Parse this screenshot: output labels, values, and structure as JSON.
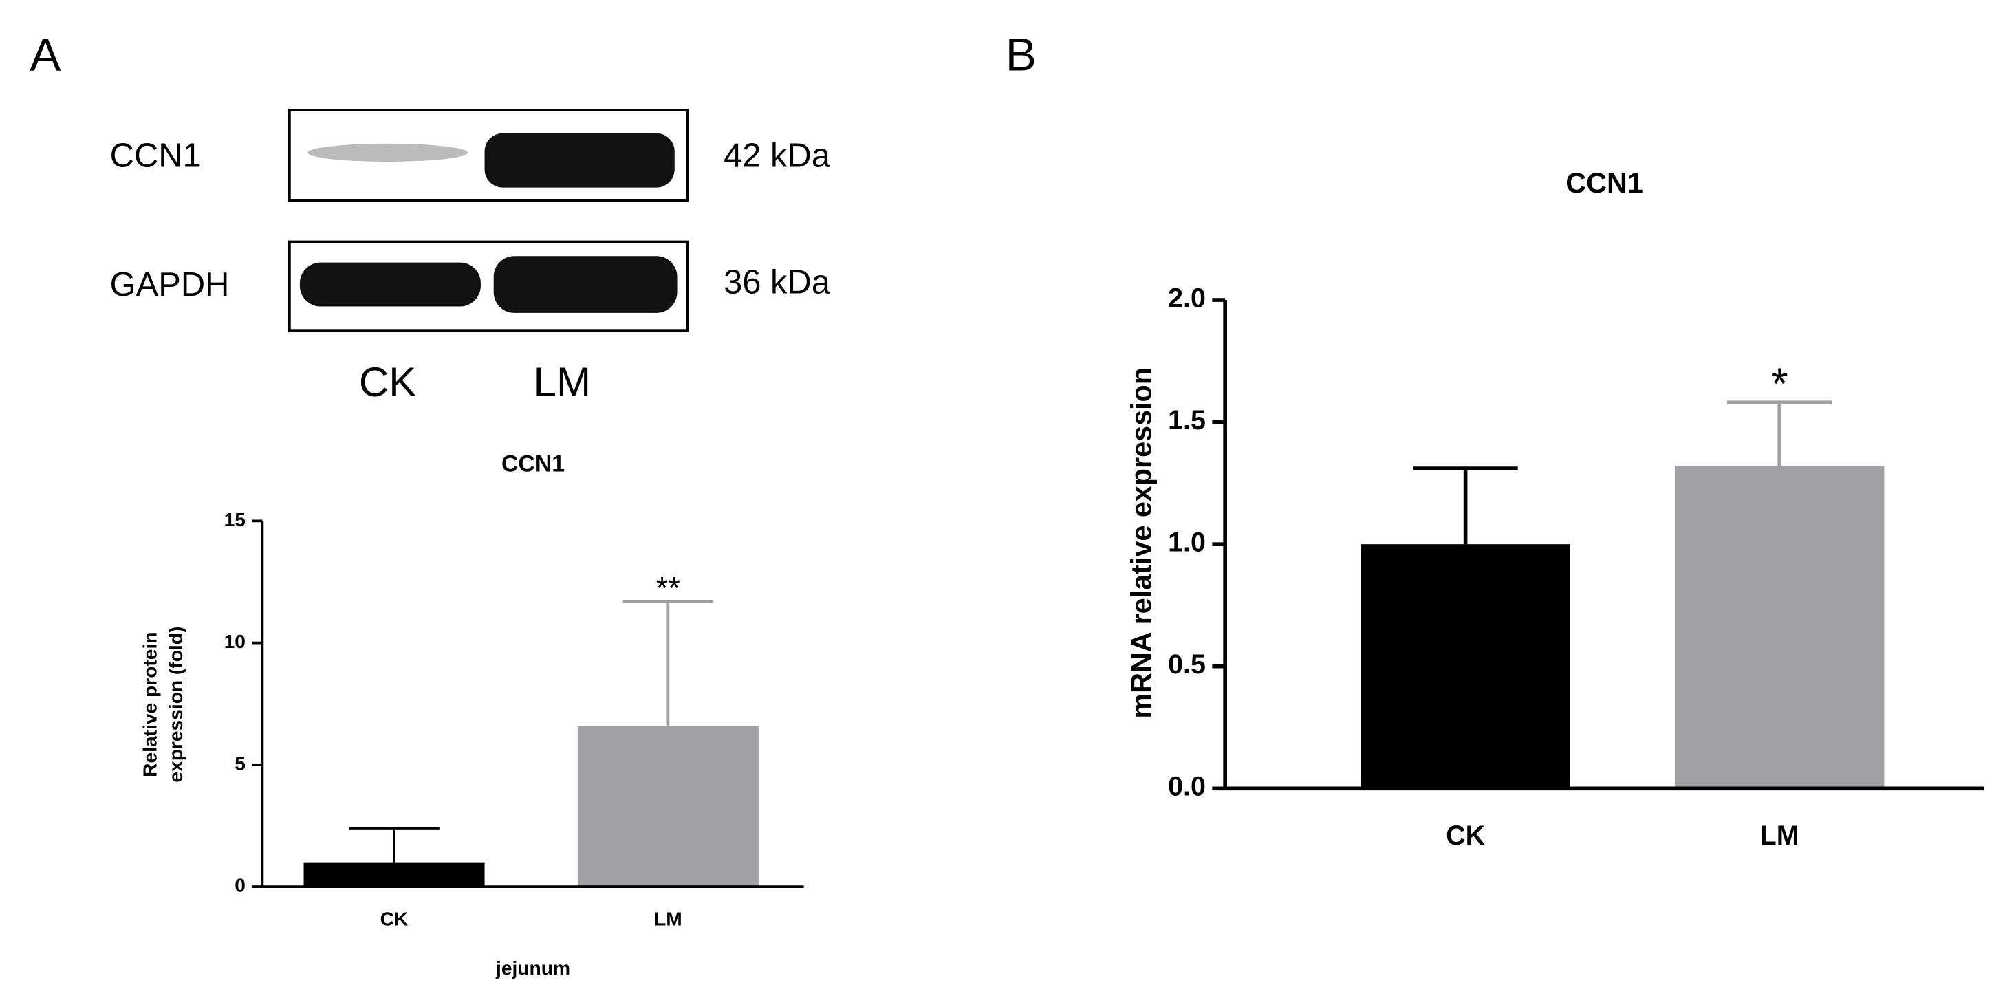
{
  "panels": [
    "A",
    "B"
  ],
  "blot": {
    "rows": [
      {
        "label": "CCN1",
        "size": "42 kDa"
      },
      {
        "label": "GAPDH",
        "size": "36 kDa"
      }
    ],
    "lanes": [
      "CK",
      "LM"
    ]
  },
  "chart_data": [
    {
      "type": "bar",
      "title": "CCN1",
      "ylabel": [
        "Relative protein",
        "expression (fold)"
      ],
      "xlabel": "jejunum",
      "categories": [
        "CK",
        "LM"
      ],
      "values": [
        1,
        6.6
      ],
      "errors": [
        1.4,
        5.1
      ],
      "colors": [
        "#000000",
        "#a0a0a4"
      ],
      "ylim": [
        0,
        15
      ],
      "yticks": [
        0,
        5,
        10,
        15
      ],
      "annotations": [
        {
          "category": "LM",
          "text": "**"
        }
      ]
    },
    {
      "type": "bar",
      "title": "CCN1",
      "ylabel": "mRNA relative expression",
      "categories": [
        "CK",
        "LM"
      ],
      "values": [
        1.0,
        1.32
      ],
      "errors": [
        0.31,
        0.26
      ],
      "colors": [
        "#000000",
        "#a0a0a4"
      ],
      "ylim": [
        0,
        2
      ],
      "yticks": [
        {
          "value": 0,
          "label": "0.0"
        },
        {
          "value": 0.5,
          "label": "0.5"
        },
        {
          "value": 1,
          "label": "1.0"
        },
        {
          "value": 1.5,
          "label": "1.5"
        },
        {
          "value": 2,
          "label": "2.0"
        }
      ],
      "annotations": [
        {
          "category": "LM",
          "text": "*"
        }
      ]
    }
  ]
}
